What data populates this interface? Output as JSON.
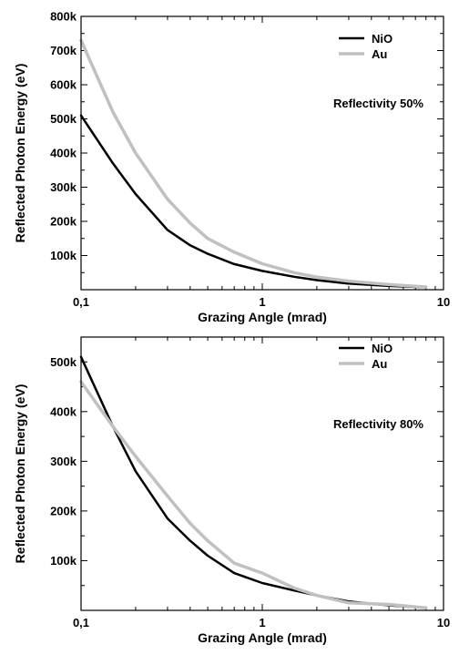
{
  "chart_data": [
    {
      "type": "line",
      "xlabel": "Grazing Angle (mrad)",
      "ylabel": "Reflected Photon Energy (eV)",
      "xscale": "log",
      "xlim": [
        0.1,
        10
      ],
      "ylim": [
        0,
        800000
      ],
      "xticks": [
        0.1,
        1,
        10
      ],
      "xtick_labels": [
        "0,1",
        "1",
        "10"
      ],
      "yticks": [
        100000,
        200000,
        300000,
        400000,
        500000,
        600000,
        700000,
        800000
      ],
      "ytick_labels": [
        "100k",
        "200k",
        "300k",
        "400k",
        "500k",
        "600k",
        "700k",
        "800k"
      ],
      "annotation": "Reflectivity  50%",
      "legend_position": "top-right",
      "series": [
        {
          "name": "NiO",
          "color": "#000000",
          "x": [
            0.1,
            0.15,
            0.2,
            0.3,
            0.4,
            0.5,
            0.7,
            1,
            1.5,
            2,
            3,
            5,
            8
          ],
          "y": [
            510000,
            370000,
            280000,
            175000,
            130000,
            105000,
            75000,
            55000,
            38000,
            28000,
            18000,
            11000,
            7000
          ]
        },
        {
          "name": "Au",
          "color": "#c0c0c0",
          "x": [
            0.1,
            0.15,
            0.2,
            0.3,
            0.4,
            0.5,
            0.7,
            1,
            1.5,
            2,
            3,
            5,
            8
          ],
          "y": [
            730000,
            520000,
            400000,
            265000,
            195000,
            150000,
            110000,
            76000,
            50000,
            37000,
            25000,
            15000,
            8000
          ]
        }
      ]
    },
    {
      "type": "line",
      "xlabel": "Grazing Angle (mrad)",
      "ylabel": "Reflected Photon Energy (eV)",
      "xscale": "log",
      "xlim": [
        0.1,
        10
      ],
      "ylim": [
        0,
        550000
      ],
      "xticks": [
        0.1,
        1,
        10
      ],
      "xtick_labels": [
        "0,1",
        "1",
        "10"
      ],
      "yticks": [
        100000,
        200000,
        300000,
        400000,
        500000
      ],
      "ytick_labels": [
        "100k",
        "200k",
        "300k",
        "400k",
        "500k"
      ],
      "annotation": "Reflectivity  80%",
      "legend_position": "top-right",
      "series": [
        {
          "name": "NiO",
          "color": "#000000",
          "x": [
            0.1,
            0.15,
            0.2,
            0.3,
            0.4,
            0.5,
            0.7,
            1,
            1.5,
            2,
            3,
            5,
            8
          ],
          "y": [
            510000,
            370000,
            280000,
            185000,
            140000,
            110000,
            75000,
            55000,
            40000,
            30000,
            18000,
            10000,
            5000
          ]
        },
        {
          "name": "Au",
          "color": "#c0c0c0",
          "x": [
            0.1,
            0.15,
            0.2,
            0.3,
            0.4,
            0.5,
            0.7,
            1,
            1.5,
            2,
            3,
            5,
            8
          ],
          "y": [
            460000,
            370000,
            310000,
            230000,
            175000,
            140000,
            95000,
            75000,
            45000,
            30000,
            15000,
            12000,
            5000
          ]
        }
      ]
    }
  ]
}
